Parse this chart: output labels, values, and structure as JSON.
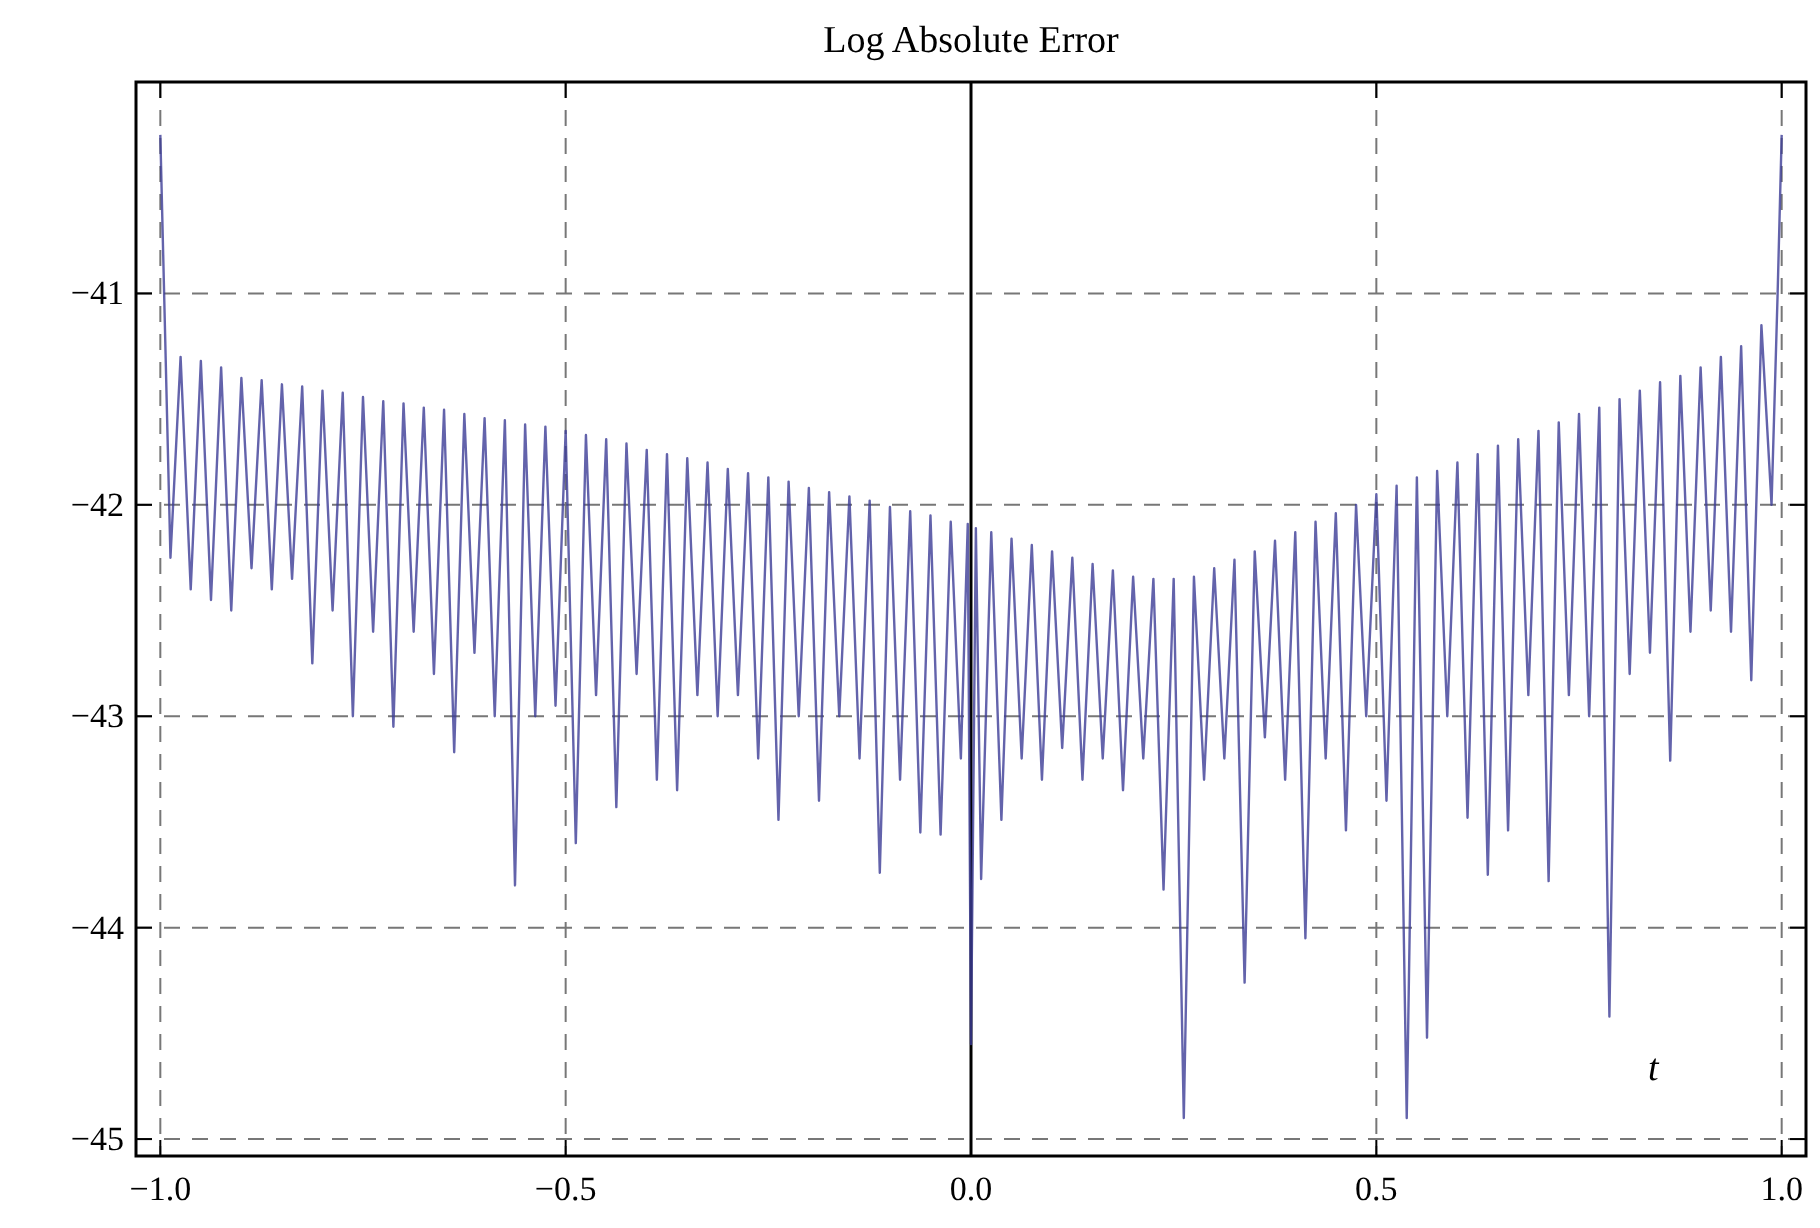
{
  "chart_data": {
    "type": "line",
    "title": "Log Absolute Error",
    "xlabel": "t",
    "xlim": [
      -1.03,
      1.03
    ],
    "ylim": [
      -45.08,
      -40.0
    ],
    "xticks": [
      {
        "value": -1,
        "label": "−1.0"
      },
      {
        "value": -0.5,
        "label": "−0.5"
      },
      {
        "value": 0,
        "label": "0.0"
      },
      {
        "value": 0.5,
        "label": "0.5"
      },
      {
        "value": 1,
        "label": "1.0"
      }
    ],
    "yticks": [
      -45,
      -44,
      -43,
      -42,
      -41
    ],
    "grid": true,
    "line_style": "solid",
    "marker": "none",
    "ref_lines": [
      {
        "axis": "x",
        "value": 0,
        "color": "#000000",
        "line_style": "solid"
      }
    ],
    "series": [
      {
        "color": "#3c3c96",
        "x": [
          -1,
          -0.9875,
          -0.975,
          -0.9625,
          -0.95,
          -0.9375,
          -0.925,
          -0.9125,
          -0.9,
          -0.8875,
          -0.875,
          -0.8625,
          -0.85,
          -0.8375,
          -0.825,
          -0.8125,
          -0.8,
          -0.7875,
          -0.775,
          -0.7625,
          -0.75,
          -0.7375,
          -0.725,
          -0.7125,
          -0.7,
          -0.6875,
          -0.675,
          -0.6625,
          -0.65,
          -0.6375,
          -0.625,
          -0.6125,
          -0.6,
          -0.5875,
          -0.575,
          -0.5625,
          -0.55,
          -0.5375,
          -0.525,
          -0.5125,
          -0.5,
          -0.4875,
          -0.475,
          -0.4625,
          -0.45,
          -0.4375,
          -0.425,
          -0.4125,
          -0.4,
          -0.3875,
          -0.375,
          -0.3625,
          -0.35,
          -0.3375,
          -0.325,
          -0.3125,
          -0.3,
          -0.2875,
          -0.275,
          -0.2625,
          -0.25,
          -0.2375,
          -0.225,
          -0.2125,
          -0.2,
          -0.1875,
          -0.175,
          -0.1625,
          -0.15,
          -0.1375,
          -0.125,
          -0.1125,
          -0.1,
          -0.0875,
          -0.075,
          -0.0625,
          -0.05,
          -0.0375,
          -0.025,
          -0.0125,
          -0.004,
          0,
          0.006,
          0.0125,
          0.025,
          0.0375,
          0.05,
          0.0625,
          0.075,
          0.0875,
          0.1,
          0.1125,
          0.125,
          0.1375,
          0.15,
          0.1625,
          0.175,
          0.1875,
          0.2,
          0.2125,
          0.225,
          0.2375,
          0.25,
          0.2625,
          0.275,
          0.2875,
          0.3,
          0.3125,
          0.325,
          0.3375,
          0.35,
          0.3625,
          0.375,
          0.3875,
          0.4,
          0.4125,
          0.425,
          0.4375,
          0.45,
          0.4625,
          0.475,
          0.4875,
          0.5,
          0.5125,
          0.525,
          0.5375,
          0.55,
          0.5625,
          0.575,
          0.5875,
          0.6,
          0.6125,
          0.625,
          0.6375,
          0.65,
          0.6625,
          0.675,
          0.6875,
          0.7,
          0.7125,
          0.725,
          0.7375,
          0.75,
          0.7625,
          0.775,
          0.7875,
          0.8,
          0.8125,
          0.825,
          0.8375,
          0.85,
          0.8625,
          0.875,
          0.8875,
          0.9,
          0.9125,
          0.925,
          0.9375,
          0.95,
          0.9625,
          0.975,
          0.9875,
          0.995,
          1
        ],
        "values": [
          -40.25,
          -42.25,
          -41.3,
          -42.4,
          -41.32,
          -42.45,
          -41.35,
          -42.5,
          -41.4,
          -42.3,
          -41.41,
          -42.4,
          -41.43,
          -42.35,
          -41.44,
          -42.75,
          -41.46,
          -42.5,
          -41.47,
          -43.0,
          -41.49,
          -42.6,
          -41.51,
          -43.05,
          -41.52,
          -42.6,
          -41.54,
          -42.8,
          -41.55,
          -43.17,
          -41.57,
          -42.7,
          -41.59,
          -43.0,
          -41.6,
          -43.8,
          -41.62,
          -43.0,
          -41.63,
          -42.95,
          -41.65,
          -43.6,
          -41.67,
          -42.9,
          -41.69,
          -43.43,
          -41.71,
          -42.8,
          -41.74,
          -43.3,
          -41.76,
          -43.35,
          -41.78,
          -42.9,
          -41.8,
          -43.0,
          -41.83,
          -42.9,
          -41.85,
          -43.2,
          -41.87,
          -43.49,
          -41.89,
          -43.0,
          -41.92,
          -43.4,
          -41.94,
          -43.0,
          -41.96,
          -43.2,
          -41.98,
          -43.74,
          -42.01,
          -43.3,
          -42.03,
          -43.55,
          -42.05,
          -43.56,
          -42.08,
          -43.2,
          -42.09,
          -44.55,
          -42.11,
          -43.77,
          -42.13,
          -43.49,
          -42.16,
          -43.2,
          -42.19,
          -43.3,
          -42.22,
          -43.15,
          -42.25,
          -43.3,
          -42.28,
          -43.2,
          -42.31,
          -43.35,
          -42.34,
          -43.2,
          -42.35,
          -43.82,
          -42.35,
          -44.9,
          -42.34,
          -43.3,
          -42.3,
          -43.2,
          -42.26,
          -44.26,
          -42.22,
          -43.1,
          -42.17,
          -43.3,
          -42.13,
          -44.05,
          -42.08,
          -43.2,
          -42.04,
          -43.54,
          -42.0,
          -43.0,
          -41.95,
          -43.4,
          -41.91,
          -44.9,
          -41.87,
          -44.52,
          -41.84,
          -43.0,
          -41.8,
          -43.48,
          -41.76,
          -43.75,
          -41.72,
          -43.54,
          -41.69,
          -42.9,
          -41.65,
          -43.78,
          -41.61,
          -42.9,
          -41.57,
          -43.0,
          -41.54,
          -44.42,
          -41.5,
          -42.8,
          -41.46,
          -42.7,
          -41.42,
          -43.21,
          -41.39,
          -42.6,
          -41.35,
          -42.5,
          -41.3,
          -42.6,
          -41.25,
          -42.83,
          -41.15,
          -42.0,
          -41.0,
          -40.25
        ]
      }
    ]
  }
}
